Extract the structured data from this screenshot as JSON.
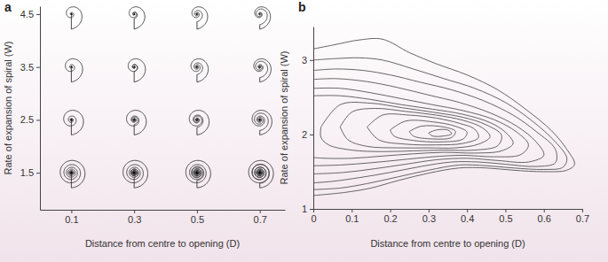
{
  "chart_data": [
    {
      "type": "scatter",
      "title": "a",
      "marker": "spiral",
      "color": "#333333",
      "x_label": "Distance from centre to opening (D)",
      "y_label": "Rate of expansion of spiral (W)",
      "xlim": [
        0,
        0.78
      ],
      "ylim": [
        0.8,
        4.65
      ],
      "xticks": [
        0.1,
        0.3,
        0.5,
        0.7
      ],
      "yticks": [
        1.5,
        2.5,
        3.5,
        4.5
      ],
      "x": [
        0.1,
        0.3,
        0.5,
        0.7,
        0.1,
        0.3,
        0.5,
        0.7,
        0.1,
        0.3,
        0.5,
        0.7,
        0.1,
        0.3,
        0.5,
        0.7
      ],
      "values": [
        1.5,
        1.5,
        1.5,
        1.5,
        2.5,
        2.5,
        2.5,
        2.5,
        3.5,
        3.5,
        3.5,
        3.5,
        4.5,
        4.5,
        4.5,
        4.5
      ]
    },
    {
      "type": "contour",
      "title": "b",
      "color": "#555555",
      "x_label": "Distance from centre to opening (D)",
      "y_label": "Rate of expansion of spiral (W)",
      "xlim": [
        0,
        0.7
      ],
      "ylim": [
        1,
        3.45
      ],
      "xticks": [
        0,
        0.1,
        0.2,
        0.3,
        0.4,
        0.5,
        0.6,
        0.7
      ],
      "yticks": [
        1,
        2,
        3
      ],
      "series": [
        {
          "x": [
            0,
            0.05,
            0.12,
            0.18,
            0.25,
            0.32,
            0.4,
            0.48,
            0.55,
            0.62,
            0.66,
            0.68,
            0.66,
            0.6,
            0.52,
            0.45,
            0.38,
            0.3,
            0.22,
            0.15,
            0.08,
            0
          ],
          "values": [
            3.15,
            3.2,
            3.27,
            3.28,
            3.1,
            2.95,
            2.8,
            2.6,
            2.35,
            2.05,
            1.8,
            1.6,
            1.52,
            1.5,
            1.52,
            1.55,
            1.55,
            1.48,
            1.38,
            1.28,
            1.22,
            1.18
          ]
        },
        {
          "x": [
            0,
            0.06,
            0.12,
            0.18,
            0.26,
            0.34,
            0.42,
            0.5,
            0.57,
            0.63,
            0.66,
            0.65,
            0.6,
            0.52,
            0.45,
            0.38,
            0.3,
            0.22,
            0.14,
            0.07,
            0
          ],
          "values": [
            3.0,
            3.02,
            3.03,
            3.0,
            2.88,
            2.75,
            2.62,
            2.43,
            2.18,
            1.9,
            1.68,
            1.56,
            1.53,
            1.55,
            1.58,
            1.59,
            1.52,
            1.43,
            1.34,
            1.28,
            1.26
          ]
        },
        {
          "x": [
            0,
            0.06,
            0.13,
            0.2,
            0.28,
            0.36,
            0.44,
            0.52,
            0.58,
            0.63,
            0.63,
            0.58,
            0.5,
            0.43,
            0.36,
            0.28,
            0.2,
            0.12,
            0.05,
            0
          ],
          "values": [
            2.86,
            2.88,
            2.86,
            2.8,
            2.7,
            2.6,
            2.46,
            2.26,
            2.04,
            1.8,
            1.62,
            1.57,
            1.6,
            1.63,
            1.63,
            1.57,
            1.49,
            1.42,
            1.37,
            1.35
          ]
        },
        {
          "x": [
            0,
            0.06,
            0.14,
            0.22,
            0.3,
            0.38,
            0.46,
            0.53,
            0.58,
            0.6,
            0.56,
            0.48,
            0.4,
            0.32,
            0.24,
            0.16,
            0.08,
            0
          ],
          "values": [
            2.74,
            2.75,
            2.71,
            2.63,
            2.53,
            2.43,
            2.29,
            2.11,
            1.9,
            1.72,
            1.63,
            1.65,
            1.68,
            1.66,
            1.6,
            1.54,
            1.49,
            1.47
          ]
        },
        {
          "x": [
            0,
            0.07,
            0.15,
            0.23,
            0.31,
            0.39,
            0.47,
            0.53,
            0.56,
            0.54,
            0.47,
            0.39,
            0.31,
            0.23,
            0.15,
            0.07,
            0
          ],
          "values": [
            2.62,
            2.62,
            2.56,
            2.48,
            2.4,
            2.32,
            2.2,
            2.03,
            1.86,
            1.73,
            1.7,
            1.72,
            1.7,
            1.66,
            1.62,
            1.59,
            1.58
          ]
        },
        {
          "x": [
            0,
            0.07,
            0.15,
            0.23,
            0.31,
            0.39,
            0.46,
            0.5,
            0.52,
            0.49,
            0.42,
            0.34,
            0.26,
            0.18,
            0.1,
            0.03,
            0
          ],
          "values": [
            2.52,
            2.52,
            2.47,
            2.4,
            2.34,
            2.27,
            2.16,
            2.03,
            1.88,
            1.78,
            1.75,
            1.76,
            1.74,
            1.71,
            1.68,
            1.68,
            1.69
          ]
        },
        {
          "x": [
            0.02,
            0.07,
            0.15,
            0.23,
            0.31,
            0.39,
            0.45,
            0.49,
            0.48,
            0.42,
            0.34,
            0.26,
            0.18,
            0.1,
            0.04,
            0.02,
            0.02
          ],
          "values": [
            2.1,
            2.4,
            2.42,
            2.36,
            2.3,
            2.23,
            2.13,
            1.99,
            1.85,
            1.79,
            1.79,
            1.78,
            1.77,
            1.79,
            1.86,
            1.96,
            2.1
          ]
        },
        {
          "x": [
            0.07,
            0.1,
            0.16,
            0.24,
            0.32,
            0.39,
            0.44,
            0.46,
            0.43,
            0.37,
            0.3,
            0.22,
            0.14,
            0.09,
            0.07
          ],
          "values": [
            2.1,
            2.3,
            2.35,
            2.31,
            2.26,
            2.19,
            2.09,
            1.97,
            1.87,
            1.82,
            1.82,
            1.82,
            1.84,
            1.93,
            2.1
          ]
        },
        {
          "x": [
            0.14,
            0.18,
            0.25,
            0.32,
            0.38,
            0.42,
            0.43,
            0.39,
            0.32,
            0.24,
            0.17,
            0.14
          ],
          "values": [
            2.1,
            2.26,
            2.26,
            2.22,
            2.15,
            2.07,
            1.96,
            1.88,
            1.86,
            1.87,
            1.93,
            2.1
          ]
        },
        {
          "x": [
            0.2,
            0.24,
            0.31,
            0.37,
            0.4,
            0.39,
            0.33,
            0.26,
            0.21,
            0.2
          ],
          "values": [
            2.06,
            2.18,
            2.17,
            2.11,
            2.03,
            1.94,
            1.9,
            1.92,
            1.98,
            2.06
          ]
        },
        {
          "x": [
            0.25,
            0.28,
            0.34,
            0.37,
            0.36,
            0.31,
            0.26,
            0.25
          ],
          "values": [
            2.04,
            2.11,
            2.1,
            2.04,
            1.96,
            1.94,
            1.98,
            2.04
          ]
        },
        {
          "x": [
            0.3,
            0.32,
            0.35,
            0.36,
            0.34,
            0.31,
            0.3
          ],
          "values": [
            2.02,
            2.06,
            2.06,
            2.01,
            1.98,
            1.98,
            2.02
          ]
        }
      ]
    }
  ]
}
